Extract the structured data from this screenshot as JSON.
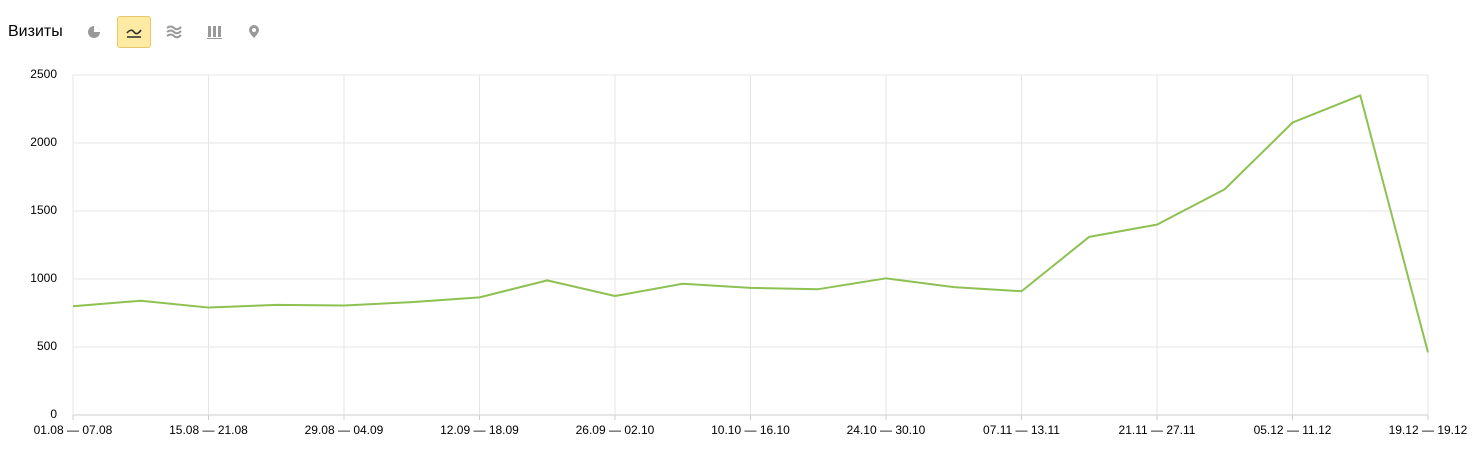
{
  "chart_data": {
    "type": "line",
    "title": "Визиты",
    "categories": [
      "01.08 — 07.08",
      null,
      "15.08 — 21.08",
      null,
      "29.08 — 04.09",
      null,
      "12.09 — 18.09",
      null,
      "26.09 — 02.10",
      null,
      "10.10 — 16.10",
      null,
      "24.10 — 30.10",
      null,
      "07.11 — 13.11",
      null,
      "21.11 — 27.11",
      null,
      "05.12 — 11.12",
      null,
      "19.12 — 19.12"
    ],
    "series": [
      {
        "name": "Визиты",
        "color": "#8dc152",
        "values": [
          800,
          840,
          790,
          810,
          805,
          830,
          865,
          990,
          875,
          965,
          935,
          925,
          1005,
          940,
          910,
          1310,
          1400,
          1660,
          2150,
          2350,
          460
        ]
      }
    ],
    "ylim": [
      0,
      2500
    ],
    "yticks": [
      0,
      500,
      1000,
      1500,
      2000,
      2500
    ],
    "grid": true
  }
}
